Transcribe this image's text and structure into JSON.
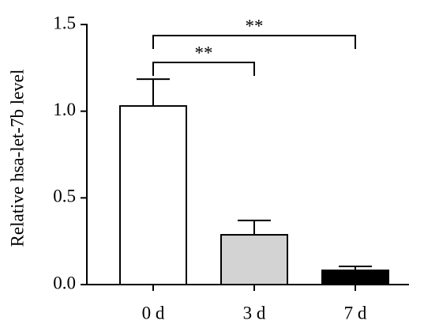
{
  "chart_data": {
    "type": "bar",
    "y_label": "Relative hsa-let-7b level",
    "categories": [
      "0 d",
      "3 d",
      "7 d"
    ],
    "values": [
      1.03,
      0.287,
      0.082
    ],
    "errors": [
      0.155,
      0.083,
      0.023
    ],
    "colors": [
      "#ffffff",
      "#d3d3d3",
      "#000000"
    ],
    "ylim": [
      0,
      1.5
    ],
    "yticks": [
      {
        "value": 0,
        "label": "0.0"
      },
      {
        "value": 0.5,
        "label": "0.5"
      },
      {
        "value": 1,
        "label": "1.0"
      },
      {
        "value": 1.5,
        "label": "1.5"
      }
    ],
    "annotations": [
      {
        "text": "**",
        "between": [
          0,
          1
        ]
      },
      {
        "text": "**",
        "between": [
          0,
          2
        ]
      }
    ]
  }
}
